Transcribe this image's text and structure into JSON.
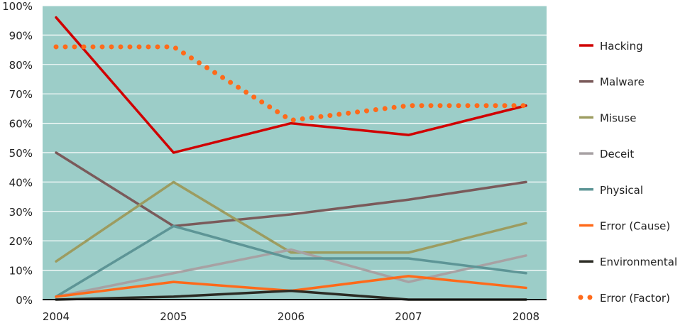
{
  "chart_data": {
    "type": "line",
    "categories": [
      "2004",
      "2005",
      "2006",
      "2007",
      "2008"
    ],
    "ylim": [
      0,
      100
    ],
    "yticks": [
      0,
      10,
      20,
      30,
      40,
      50,
      60,
      70,
      80,
      90,
      100
    ],
    "ytick_labels": [
      "0%",
      "10%",
      "20%",
      "30%",
      "40%",
      "50%",
      "60%",
      "70%",
      "80%",
      "90%",
      "100%"
    ],
    "grid": true,
    "legend_position": "right",
    "plot_background": "#9ccdc8",
    "series": [
      {
        "name": "Hacking",
        "values": [
          96,
          50,
          60,
          56,
          66
        ],
        "color": "#d00000",
        "style": "solid"
      },
      {
        "name": "Malware",
        "values": [
          50,
          25,
          29,
          34,
          40
        ],
        "color": "#7a5a5a",
        "style": "solid"
      },
      {
        "name": "Misuse",
        "values": [
          13,
          40,
          16,
          16,
          26
        ],
        "color": "#9c9c60",
        "style": "solid"
      },
      {
        "name": "Deceit",
        "values": [
          1,
          9,
          17,
          6,
          15
        ],
        "color": "#a7a1a3",
        "style": "solid"
      },
      {
        "name": "Physical",
        "values": [
          1,
          25,
          14,
          14,
          9
        ],
        "color": "#5d9596",
        "style": "solid"
      },
      {
        "name": "Error (Cause)",
        "values": [
          1,
          6,
          3,
          8,
          4
        ],
        "color": "#ff6a1a",
        "style": "solid"
      },
      {
        "name": "Environmental",
        "values": [
          0,
          1,
          3,
          0,
          0
        ],
        "color": "#2b2b24",
        "style": "solid"
      },
      {
        "name": "Error (Factor)",
        "values": [
          86,
          86,
          61,
          66,
          66
        ],
        "color": "#ff6a1a",
        "style": "dotted"
      }
    ]
  }
}
